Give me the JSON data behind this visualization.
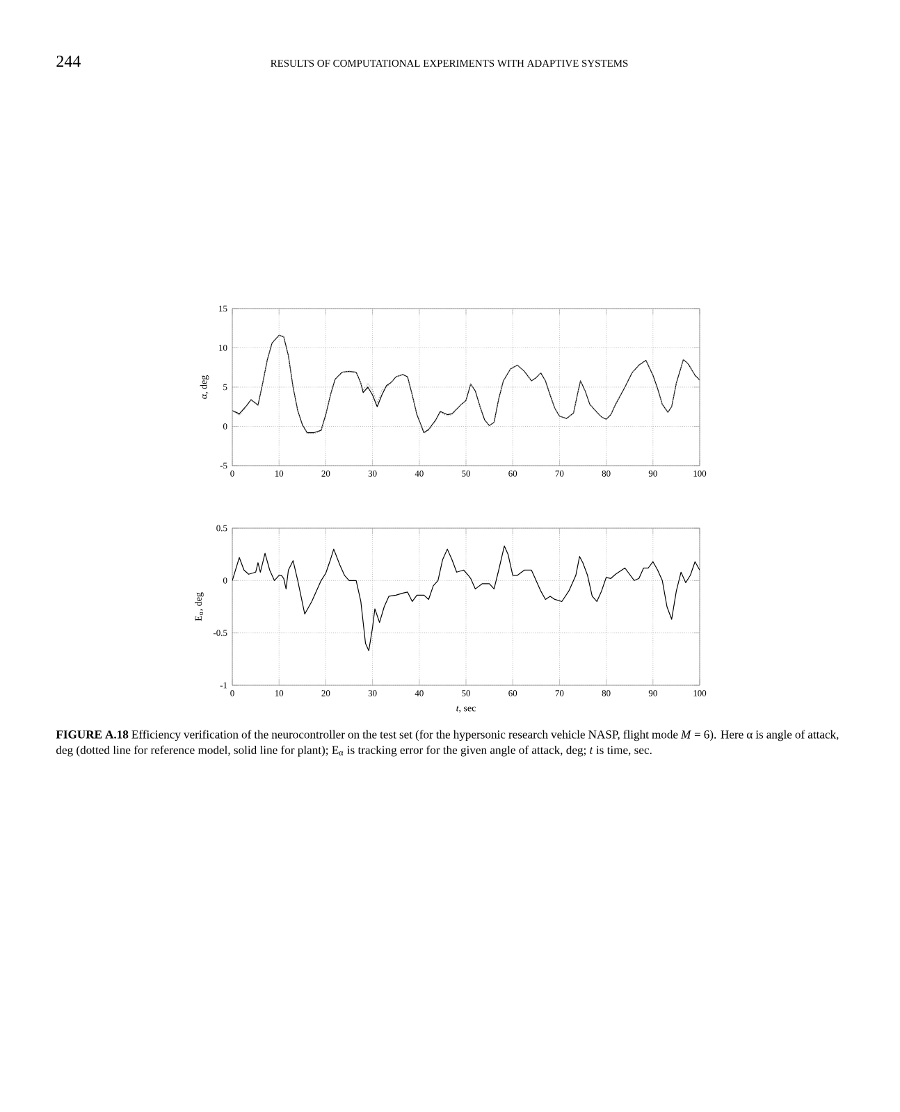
{
  "chart_data": [
    {
      "type": "line",
      "ylabel": "α, deg",
      "xlim": [
        0,
        100
      ],
      "ylim": [
        -5,
        15
      ],
      "xticks": [
        0,
        10,
        20,
        30,
        40,
        50,
        60,
        70,
        80,
        90,
        100
      ],
      "yticks": [
        -5,
        0,
        5,
        10,
        15
      ],
      "grid": true,
      "annotations": [
        "244",
        "RESULTS OF COMPUTATIONAL EXPERIMENTS WITH ADAPTIVE SYSTEMS"
      ],
      "series": [
        {
          "color": "#8c8c8c",
          "line_style": "dotted",
          "x": [
            0,
            1.5,
            3,
            4,
            5.5,
            6.5,
            7.5,
            8.5,
            10,
            11,
            12,
            13,
            14,
            15,
            16,
            17.5,
            19,
            20,
            21,
            22,
            23.5,
            25,
            26.5,
            27.5,
            28,
            29,
            30,
            31,
            32,
            33,
            34,
            35,
            36.5,
            37.5,
            38.5,
            39.5,
            41,
            42,
            43.5,
            44.5,
            46,
            47,
            49,
            50,
            51,
            52,
            53,
            54,
            55,
            56,
            57,
            58,
            59.5,
            61,
            62.5,
            64,
            65,
            66,
            67,
            68,
            69,
            70,
            71.5,
            73,
            74,
            74.5,
            75.5,
            76.5,
            78,
            79,
            80,
            81,
            82,
            84,
            85.5,
            87,
            88.5,
            90,
            91,
            92,
            93.2,
            94,
            95,
            96.5,
            97.5,
            99,
            100
          ],
          "values": [
            2.0,
            1.4,
            2.5,
            3.4,
            2.7,
            5.5,
            8.5,
            10.6,
            11.6,
            11.4,
            9,
            5,
            2,
            0.1,
            -0.9,
            -0.9,
            -0.6,
            1.5,
            4,
            6,
            6.9,
            7.0,
            6.9,
            5.5,
            4.6,
            5.5,
            4.6,
            3.0,
            4.6,
            5.0,
            5.6,
            6.3,
            6.6,
            6.3,
            4,
            1.5,
            -0.9,
            -0.5,
            0.7,
            1.8,
            1.3,
            1.5,
            2.8,
            3.3,
            5.4,
            4.5,
            2.5,
            0.8,
            0.1,
            0.5,
            3.5,
            5.8,
            7.3,
            7.8,
            7.0,
            5.8,
            6.2,
            6.8,
            5.8,
            4,
            2.3,
            1.3,
            1.0,
            1.7,
            4.5,
            5.8,
            4.5,
            2.8,
            1.8,
            1.2,
            0.9,
            1.5,
            2.8,
            5.0,
            6.8,
            7.8,
            8.4,
            6.5,
            4.8,
            2.8,
            1.8,
            2.5,
            5.5,
            8.5,
            8,
            6.5,
            5.9
          ]
        },
        {
          "color": "#000000",
          "line_style": "solid",
          "x": [
            0,
            1.5,
            3,
            4,
            5.5,
            6.5,
            7.5,
            8.5,
            10,
            11,
            12,
            13,
            14,
            15,
            16,
            17.5,
            19,
            20,
            21,
            22,
            23.5,
            25,
            26.5,
            27.5,
            28,
            29,
            30,
            31,
            32,
            33,
            34,
            35,
            36.5,
            37.5,
            38.5,
            39.5,
            41,
            42,
            43.5,
            44.5,
            46,
            47,
            49,
            50,
            51,
            52,
            53,
            54,
            55,
            56,
            57,
            58,
            59.5,
            61,
            62.5,
            64,
            65,
            66,
            67,
            68,
            69,
            70,
            71.5,
            73,
            74,
            74.5,
            75.5,
            76.5,
            78,
            79,
            80,
            81,
            82,
            84,
            85.5,
            87,
            88.5,
            90,
            91,
            92,
            93.2,
            94,
            95,
            96.5,
            97.5,
            99,
            100
          ],
          "values": [
            2.0,
            1.6,
            2.6,
            3.4,
            2.7,
            5.5,
            8.5,
            10.6,
            11.6,
            11.4,
            9,
            5,
            2,
            0.2,
            -0.8,
            -0.8,
            -0.5,
            1.5,
            4,
            6,
            6.9,
            7.0,
            6.9,
            5.5,
            4.3,
            5.0,
            4.0,
            2.5,
            4.0,
            5.2,
            5.6,
            6.3,
            6.6,
            6.3,
            4,
            1.5,
            -0.8,
            -0.4,
            0.8,
            1.9,
            1.5,
            1.6,
            2.8,
            3.3,
            5.4,
            4.5,
            2.5,
            0.8,
            0.1,
            0.5,
            3.5,
            5.8,
            7.3,
            7.8,
            7.0,
            5.8,
            6.2,
            6.8,
            5.8,
            4,
            2.3,
            1.3,
            1.0,
            1.7,
            4.5,
            5.8,
            4.5,
            2.8,
            1.8,
            1.2,
            0.9,
            1.5,
            2.8,
            5.0,
            6.8,
            7.8,
            8.4,
            6.5,
            4.8,
            2.8,
            1.8,
            2.5,
            5.5,
            8.5,
            8,
            6.5,
            5.9
          ]
        }
      ]
    },
    {
      "type": "line",
      "xlabel": "*t*, sec",
      "ylabel": "E$_{α}$, deg",
      "xlim": [
        0,
        100
      ],
      "ylim": [
        -1,
        0.5
      ],
      "xticks": [
        0,
        10,
        20,
        30,
        40,
        50,
        60,
        70,
        80,
        90,
        100
      ],
      "yticks": [
        -1,
        -0.5,
        0,
        0.5
      ],
      "grid": true,
      "annotations": [
        "**FIGURE A.18** Efficiency verification of the neurocontroller on the test set (for the hypersonic research vehicle NASP, flight mode *M* = 6). Here α is angle of attack, deg (dotted line for reference model, solid line for plant); E$_{α}$ is tracking error for the given angle of attack, deg; *t* is time, sec."
      ],
      "series": [
        {
          "color": "#000000",
          "line_style": "solid",
          "x": [
            0,
            1.5,
            2.5,
            3.5,
            5,
            5.5,
            6,
            7,
            8,
            9,
            10,
            10.5,
            11,
            11.5,
            12,
            13,
            14,
            15.5,
            17,
            19,
            20,
            21,
            21.7,
            23,
            24,
            25,
            26.5,
            27.5,
            28.5,
            29.2,
            30,
            30.5,
            31.5,
            32.5,
            33.5,
            35,
            36.5,
            37.5,
            38.5,
            39.5,
            41,
            42,
            43,
            44,
            45,
            46,
            47,
            48,
            49.5,
            50.5,
            51,
            52,
            53.5,
            55,
            56,
            57,
            58.2,
            59,
            60,
            61,
            62.5,
            64,
            65,
            66,
            67,
            68,
            69,
            70.5,
            72,
            73.5,
            74.3,
            75,
            76,
            77,
            78,
            79,
            80,
            81,
            82,
            84,
            86,
            87,
            88,
            89,
            90,
            91,
            92,
            93,
            94,
            95,
            96,
            97,
            98,
            99,
            100
          ],
          "values": [
            0,
            0.22,
            0.1,
            0.06,
            0.08,
            0.17,
            0.08,
            0.26,
            0.1,
            0,
            0.05,
            0.05,
            0.02,
            -0.08,
            0.1,
            0.19,
            0,
            -0.32,
            -0.2,
            0,
            0.07,
            0.2,
            0.3,
            0.15,
            0.05,
            0,
            0,
            -0.2,
            -0.6,
            -0.67,
            -0.45,
            -0.27,
            -0.4,
            -0.25,
            -0.15,
            -0.14,
            -0.12,
            -0.11,
            -0.2,
            -0.14,
            -0.14,
            -0.18,
            -0.05,
            0,
            0.2,
            0.3,
            0.2,
            0.08,
            0.1,
            0.05,
            0.02,
            -0.08,
            -0.03,
            -0.03,
            -0.08,
            0.1,
            0.33,
            0.25,
            0.05,
            0.05,
            0.1,
            0.1,
            0,
            -0.1,
            -0.18,
            -0.15,
            -0.18,
            -0.2,
            -0.1,
            0.05,
            0.23,
            0.17,
            0.05,
            -0.15,
            -0.2,
            -0.1,
            0.03,
            0.02,
            0.06,
            0.12,
            0,
            0.02,
            0.12,
            0.12,
            0.18,
            0.1,
            0,
            -0.25,
            -0.37,
            -0.1,
            0.08,
            -0.02,
            0.05,
            0.18,
            0.1
          ]
        }
      ]
    }
  ]
}
